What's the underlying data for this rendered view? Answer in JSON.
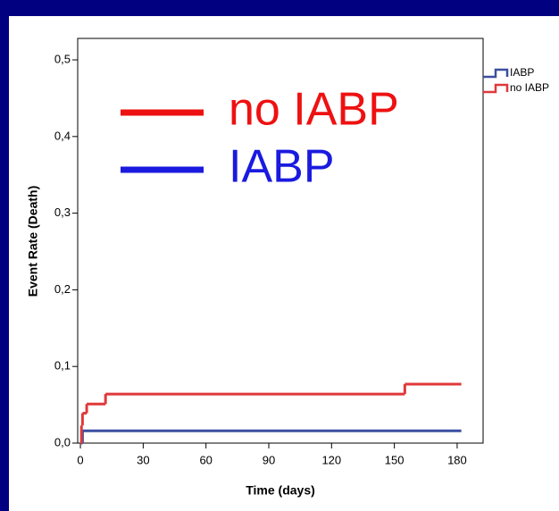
{
  "chart_data": {
    "type": "line",
    "step": "post",
    "xlabel": "Time (days)",
    "ylabel": "Event Rate (Death)",
    "xlim": [
      -1.3,
      192.4
    ],
    "ylim": [
      0,
      0.528
    ],
    "xticks": [
      0,
      30,
      60,
      90,
      120,
      150,
      180
    ],
    "yticks": [
      {
        "value": 0,
        "label": "0,0"
      },
      {
        "value": 0.1,
        "label": "0,1"
      },
      {
        "value": 0.2,
        "label": "0,2"
      },
      {
        "value": 0.3,
        "label": "0,3"
      },
      {
        "value": 0.4,
        "label": "0,4"
      },
      {
        "value": 0.5,
        "label": "0,5"
      }
    ],
    "grid": false,
    "legend": "right",
    "series": [
      {
        "name": "IABP",
        "color": "#3a4fa0",
        "x": [
          0,
          1,
          182
        ],
        "values": [
          0,
          0.016,
          0.016
        ]
      },
      {
        "name": "no IABP",
        "color": "#e0383a",
        "x": [
          0,
          0.5,
          1,
          3,
          12,
          155,
          182
        ],
        "values": [
          0,
          0.023,
          0.039,
          0.051,
          0.064,
          0.077,
          0.077
        ]
      }
    ],
    "annotations": [
      {
        "text": "no IABP",
        "color": "#ee1111"
      },
      {
        "text": "IABP",
        "color": "#1a1adf"
      }
    ]
  }
}
